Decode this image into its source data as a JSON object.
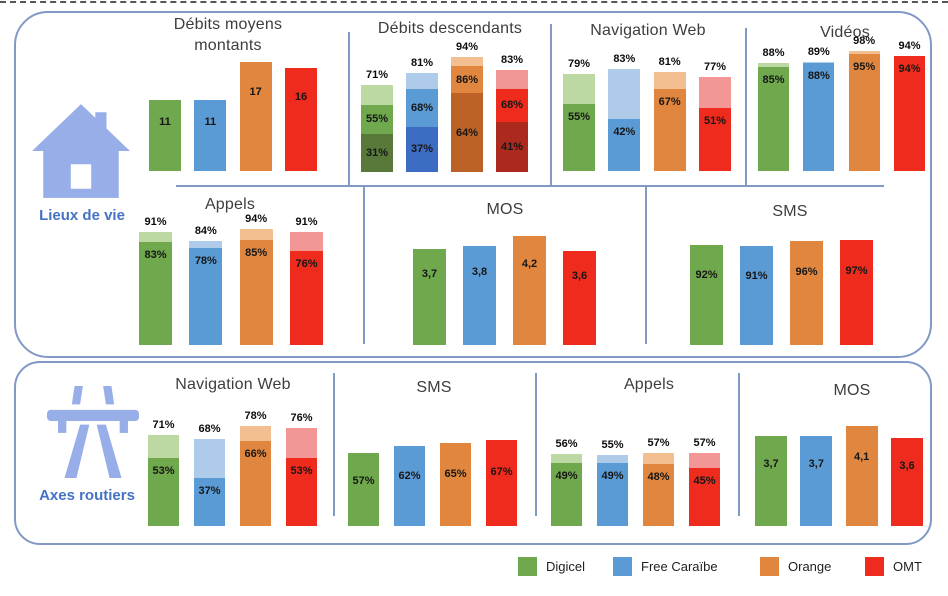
{
  "sections": [
    {
      "label": "Lieux de vie"
    },
    {
      "label": "Axes routiers"
    }
  ],
  "operators": [
    {
      "name": "Digicel",
      "base": "#70a84e",
      "light": "#bcd9a4",
      "dark": "#58793a"
    },
    {
      "name": "Free Caraïbe",
      "base": "#5b9bd5",
      "light": "#aecbea",
      "dark": "#3d6dc3"
    },
    {
      "name": "Orange",
      "base": "#e0863e",
      "light": "#f3bf90",
      "dark": "#bd6226"
    },
    {
      "name": "OMT",
      "base": "#ee2b1d",
      "light": "#f29795",
      "dark": "#ab2a1d"
    }
  ],
  "legend": {
    "items": [
      {
        "label": "Digicel"
      },
      {
        "label": "Free Caraïbe"
      },
      {
        "label": "Orange"
      },
      {
        "label": "OMT"
      }
    ]
  },
  "chart_data": [
    {
      "id": "lieux-debits-montants",
      "section": "Lieux de vie",
      "title": "Débits moyens montants",
      "title_lines": [
        "Débits moyens",
        "montants"
      ],
      "type": "bar",
      "categories": [
        "Digicel",
        "Free Caraïbe",
        "Orange",
        "OMT"
      ],
      "totals": [
        11,
        11,
        17,
        16
      ],
      "total_labels": [
        "11",
        "11",
        "17",
        "16"
      ],
      "ylim": [
        0,
        21
      ],
      "label_offset": 0.22
    },
    {
      "id": "lieux-debits-descendants",
      "section": "Lieux de vie",
      "title": "Débits descendants",
      "type": "stacked3",
      "categories": [
        "Digicel",
        "Free Caraïbe",
        "Orange",
        "OMT"
      ],
      "lows": [
        31,
        37,
        64,
        41
      ],
      "low_labels": [
        "31%",
        "37%",
        "64%",
        "41%"
      ],
      "mids": [
        55,
        68,
        86,
        68
      ],
      "mid_labels": [
        "55%",
        "68%",
        "86%",
        "68%"
      ],
      "totals": [
        71,
        81,
        94,
        83
      ],
      "total_labels": [
        "71%",
        "81%",
        "94%",
        "83%"
      ],
      "ylim": [
        0,
        110
      ]
    },
    {
      "id": "lieux-navigation-web",
      "section": "Lieux de vie",
      "title": "Navigation Web",
      "type": "stacked2",
      "categories": [
        "Digicel",
        "Free Caraïbe",
        "Orange",
        "OMT"
      ],
      "lows": [
        55,
        42,
        67,
        51
      ],
      "low_labels": [
        "55%",
        "42%",
        "67%",
        "51%"
      ],
      "totals": [
        79,
        83,
        81,
        77
      ],
      "total_labels": [
        "79%",
        "83%",
        "81%",
        "77%"
      ],
      "ylim": [
        0,
        110
      ]
    },
    {
      "id": "lieux-videos",
      "section": "Lieux de vie",
      "title": "Vidéos",
      "type": "stacked2",
      "categories": [
        "Digicel",
        "Free Caraïbe",
        "Orange",
        "OMT"
      ],
      "lows": [
        85,
        88,
        95,
        94
      ],
      "low_labels": [
        "85%",
        "88%",
        "95%",
        "94%"
      ],
      "totals": [
        88,
        89,
        98,
        94
      ],
      "total_labels": [
        "88%",
        "89%",
        "98%",
        "94%"
      ],
      "ylim": [
        0,
        110
      ]
    },
    {
      "id": "lieux-appels",
      "section": "Lieux de vie",
      "title": "Appels",
      "type": "stacked2",
      "categories": [
        "Digicel",
        "Free Caraïbe",
        "Orange",
        "OMT"
      ],
      "lows": [
        83,
        78,
        85,
        76
      ],
      "low_labels": [
        "83%",
        "78%",
        "85%",
        "76%"
      ],
      "totals": [
        91,
        84,
        94,
        91
      ],
      "total_labels": [
        "91%",
        "84%",
        "94%",
        "91%"
      ],
      "ylim": [
        0,
        105
      ]
    },
    {
      "id": "lieux-mos",
      "section": "Lieux de vie",
      "title": "MOS",
      "type": "bar",
      "categories": [
        "Digicel",
        "Free Caraïbe",
        "Orange",
        "OMT"
      ],
      "totals": [
        3.7,
        3.8,
        4.2,
        3.6
      ],
      "total_labels": [
        "3,7",
        "3,8",
        "4,2",
        "3,6"
      ],
      "ylim": [
        0,
        5
      ],
      "label_offset": 0.2
    },
    {
      "id": "lieux-sms",
      "section": "Lieux de vie",
      "title": "SMS",
      "type": "bar",
      "categories": [
        "Digicel",
        "Free Caraïbe",
        "Orange",
        "OMT"
      ],
      "totals": [
        92,
        91,
        96,
        97
      ],
      "total_labels": [
        "92%",
        "91%",
        "96%",
        "97%"
      ],
      "ylim": [
        0,
        120
      ],
      "label_offset": 0.24
    },
    {
      "id": "axes-navigation-web",
      "section": "Axes routiers",
      "title": "Navigation Web",
      "type": "stacked2",
      "categories": [
        "Digicel",
        "Free Caraïbe",
        "Orange",
        "OMT"
      ],
      "lows": [
        53,
        37,
        66,
        53
      ],
      "low_labels": [
        "53%",
        "37%",
        "66%",
        "53%"
      ],
      "totals": [
        71,
        68,
        78,
        76
      ],
      "total_labels": [
        "71%",
        "68%",
        "78%",
        "76%"
      ],
      "ylim": [
        0,
        95
      ]
    },
    {
      "id": "axes-sms",
      "section": "Axes routiers",
      "title": "SMS",
      "type": "bar",
      "categories": [
        "Digicel",
        "Free Caraïbe",
        "Orange",
        "OMT"
      ],
      "totals": [
        57,
        62,
        65,
        67
      ],
      "total_labels": [
        "57%",
        "62%",
        "65%",
        "67%"
      ],
      "ylim": [
        0,
        95
      ],
      "label_offset": 0.3
    },
    {
      "id": "axes-appels",
      "section": "Axes routiers",
      "title": "Appels",
      "type": "stacked2",
      "categories": [
        "Digicel",
        "Free Caraïbe",
        "Orange",
        "OMT"
      ],
      "lows": [
        49,
        49,
        48,
        45
      ],
      "low_labels": [
        "49%",
        "49%",
        "48%",
        "45%"
      ],
      "totals": [
        56,
        55,
        57,
        57
      ],
      "total_labels": [
        "56%",
        "55%",
        "57%",
        "57%"
      ],
      "ylim": [
        0,
        95
      ]
    },
    {
      "id": "axes-mos",
      "section": "Axes routiers",
      "title": "MOS",
      "type": "bar",
      "categories": [
        "Digicel",
        "Free Caraïbe",
        "Orange",
        "OMT"
      ],
      "totals": [
        3.7,
        3.7,
        4.1,
        3.6
      ],
      "total_labels": [
        "3,7",
        "3,7",
        "4,1",
        "3,6"
      ],
      "ylim": [
        0,
        5
      ],
      "label_offset": 0.25
    }
  ]
}
